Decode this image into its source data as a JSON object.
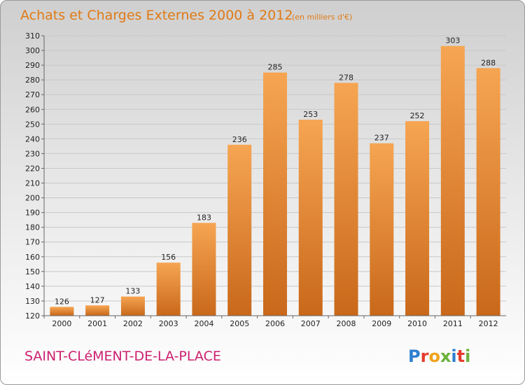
{
  "header": {
    "title": "Achats et Charges Externes 2000 à 2012",
    "subtitle": "(en milliers d'€)"
  },
  "footer": {
    "place": "SAINT-CLéMENT-DE-LA-PLACE",
    "logo": [
      "P",
      "r",
      "o",
      "x",
      "i",
      "t",
      "i"
    ]
  },
  "colors": {
    "title": "#e07a14",
    "place": "#cc1f6f",
    "bar_light": "#f6a552",
    "bar_dark": "#c9681a",
    "logo": [
      "#2e7fd0",
      "#e53b2c",
      "#f0a21a",
      "#6ab23a",
      "#2e7fd0",
      "#e53b2c",
      "#6ab23a"
    ]
  },
  "chart_data": {
    "type": "bar",
    "categories": [
      "2000",
      "2001",
      "2002",
      "2003",
      "2004",
      "2005",
      "2006",
      "2007",
      "2008",
      "2009",
      "2010",
      "2011",
      "2012"
    ],
    "values": [
      126,
      127,
      133,
      156,
      183,
      236,
      285,
      253,
      278,
      237,
      252,
      303,
      288
    ],
    "ylim": [
      120,
      310
    ],
    "yticks": [
      120,
      130,
      140,
      150,
      160,
      170,
      180,
      190,
      200,
      210,
      220,
      230,
      240,
      250,
      260,
      270,
      280,
      290,
      300,
      310
    ],
    "grid": true
  }
}
